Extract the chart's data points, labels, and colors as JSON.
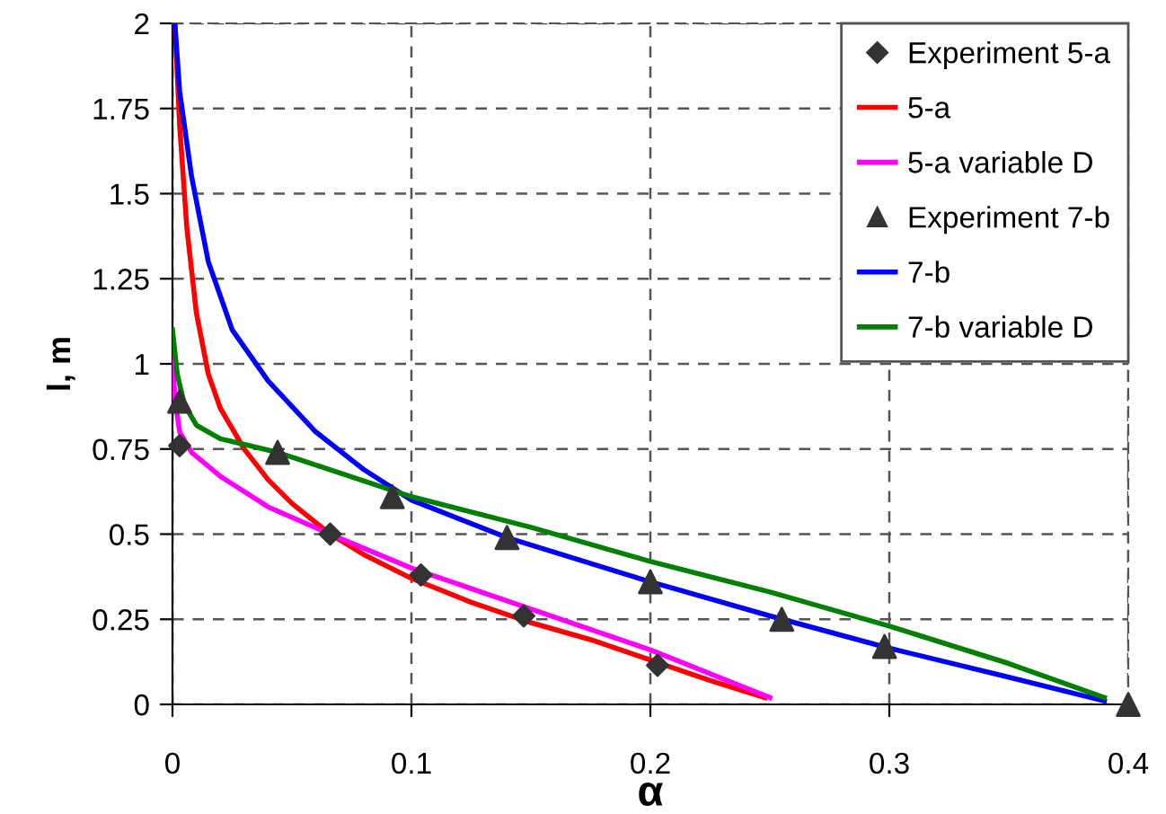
{
  "chart_data": {
    "type": "line",
    "xlabel": "α",
    "ylabel": "l, m",
    "xlim": [
      0,
      0.4
    ],
    "xticks": [
      0,
      0.1,
      0.2,
      0.3,
      0.4
    ],
    "ylim": [
      0,
      2
    ],
    "yticks": [
      0,
      0.25,
      0.5,
      0.75,
      1,
      1.25,
      1.5,
      1.75,
      2
    ],
    "grid": true,
    "legend": "top right",
    "series": [
      {
        "name": "Experiment 5-a",
        "type": "scatter",
        "marker": "diamond",
        "color": "#333333",
        "x": [
          0.003,
          0.066,
          0.104,
          0.147,
          0.203
        ],
        "values": [
          0.76,
          0.5,
          0.38,
          0.26,
          0.115
        ]
      },
      {
        "name": "5-a",
        "color": "#ff0000",
        "x": [
          0.001,
          0.003,
          0.006,
          0.01,
          0.015,
          0.02,
          0.03,
          0.04,
          0.05,
          0.066,
          0.08,
          0.1,
          0.125,
          0.15,
          0.175,
          0.2,
          0.225,
          0.248
        ],
        "values": [
          2,
          1.7,
          1.4,
          1.15,
          0.97,
          0.87,
          0.75,
          0.66,
          0.59,
          0.5,
          0.44,
          0.37,
          0.3,
          0.24,
          0.19,
          0.13,
          0.07,
          0.02
        ]
      },
      {
        "name": "5-a variable D",
        "color": "#ff00ff",
        "x": [
          0,
          0.001,
          0.003,
          0.008,
          0.02,
          0.04,
          0.066,
          0.1,
          0.15,
          0.2,
          0.25
        ],
        "values": [
          1.02,
          0.9,
          0.8,
          0.74,
          0.67,
          0.58,
          0.5,
          0.4,
          0.28,
          0.16,
          0.02
        ]
      },
      {
        "name": "Experiment 7-b",
        "type": "scatter",
        "marker": "triangle",
        "color": "#333333",
        "x": [
          0.003,
          0.044,
          0.092,
          0.14,
          0.2,
          0.255,
          0.298,
          0.4
        ],
        "values": [
          0.89,
          0.74,
          0.61,
          0.49,
          0.36,
          0.25,
          0.17,
          0
        ]
      },
      {
        "name": "7-b",
        "color": "#0000ff",
        "x": [
          0.001,
          0.003,
          0.008,
          0.015,
          0.025,
          0.04,
          0.06,
          0.08,
          0.1,
          0.14,
          0.2,
          0.25,
          0.3,
          0.35,
          0.39
        ],
        "values": [
          2,
          1.8,
          1.55,
          1.3,
          1.1,
          0.95,
          0.8,
          0.69,
          0.6,
          0.49,
          0.36,
          0.26,
          0.165,
          0.08,
          0.01
        ]
      },
      {
        "name": "7-b variable D",
        "color": "#008000",
        "x": [
          0,
          0.002,
          0.005,
          0.01,
          0.02,
          0.044,
          0.07,
          0.1,
          0.15,
          0.2,
          0.25,
          0.3,
          0.35,
          0.39
        ],
        "values": [
          1.1,
          0.97,
          0.88,
          0.82,
          0.78,
          0.74,
          0.68,
          0.61,
          0.52,
          0.42,
          0.33,
          0.23,
          0.12,
          0.02
        ]
      }
    ]
  }
}
